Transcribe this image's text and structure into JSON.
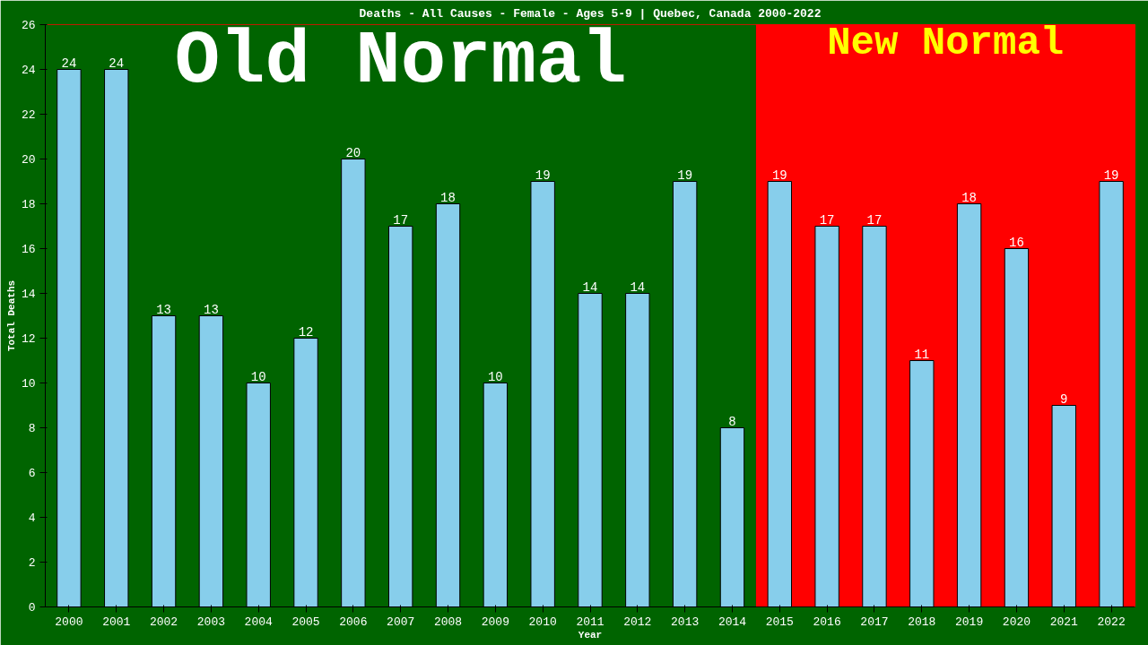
{
  "chart_data": {
    "type": "bar",
    "title": "Deaths - All Causes - Female - Ages 5-9 | Quebec, Canada 2000-2022",
    "xlabel": "Year",
    "ylabel": "Total Deaths",
    "categories": [
      "2000",
      "2001",
      "2002",
      "2003",
      "2004",
      "2005",
      "2006",
      "2007",
      "2008",
      "2009",
      "2010",
      "2011",
      "2012",
      "2013",
      "2014",
      "2015",
      "2016",
      "2017",
      "2018",
      "2019",
      "2020",
      "2021",
      "2022"
    ],
    "values": [
      24,
      24,
      13,
      13,
      10,
      12,
      20,
      17,
      18,
      10,
      19,
      14,
      14,
      19,
      8,
      19,
      17,
      17,
      11,
      18,
      16,
      9,
      19
    ],
    "color": "#87ceeb",
    "data_labels": true,
    "grid": false,
    "ylim": [
      0,
      26
    ],
    "yticks": [
      0,
      2,
      4,
      6,
      8,
      10,
      12,
      14,
      16,
      18,
      20,
      22,
      24,
      26
    ],
    "bands": [
      {
        "axis": "x",
        "from": "2000",
        "to": "2014",
        "label": "Old Normal",
        "color": "#006400"
      },
      {
        "axis": "x",
        "from": "2015",
        "to": "2022",
        "label": "New Normal",
        "color": "#ff0000"
      }
    ]
  }
}
